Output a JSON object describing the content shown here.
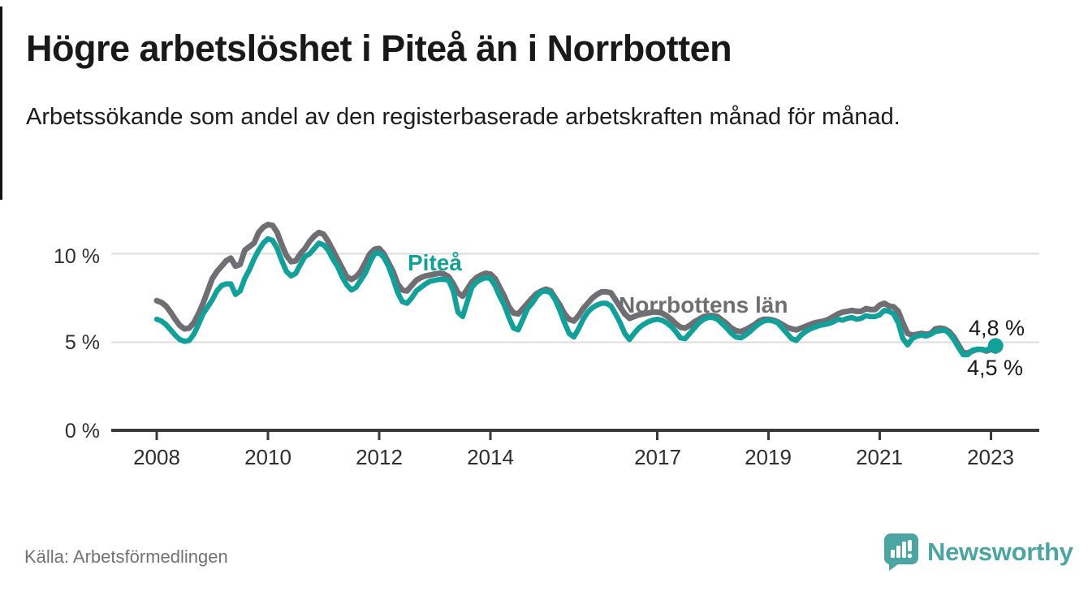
{
  "header": {
    "title": "Högre arbetslöshet i Piteå än i Norrbotten",
    "subtitle": "Arbetssökande som andel av den registerbaserade arbetskraften månad för månad."
  },
  "footer": {
    "source": "Källa: Arbetsförmedlingen",
    "brand": "Newsworthy"
  },
  "colors": {
    "pitea_line": "#12A19A",
    "norrbotten_line": "#6E6E73",
    "gridline": "#DCDCDC",
    "axis": "#3A3A3A",
    "logo_teal": "#4BA5A2",
    "title_text": "#191919",
    "muted_text": "#737373"
  },
  "chart_data": {
    "type": "line",
    "title": "Högre arbetslöshet i Piteå än i Norrbotten",
    "subtitle": "Arbetssökande som andel av den registerbaserade arbetskraften månad för månad.",
    "frequency": "monthly",
    "x_start": "2008-01",
    "x_end": "2023-02",
    "x_tick_labels": [
      "2008",
      "2010",
      "2012",
      "2014",
      "2017",
      "2019",
      "2021",
      "2023"
    ],
    "y_tick_labels": [
      "0 %",
      "5 %",
      "10 %"
    ],
    "y_gridlines": [
      5,
      10
    ],
    "ylim": [
      0,
      13
    ],
    "grid": "horizontal-only",
    "legend_position": "inline-labels",
    "series": [
      {
        "name": "Norrbottens län",
        "color": "#6E6E73",
        "end_label": "4,5 %",
        "end_value": 4.5,
        "end_dot": false,
        "values": [
          7.35,
          7.25,
          7.05,
          6.7,
          6.3,
          5.95,
          5.75,
          5.8,
          6.1,
          6.6,
          7.2,
          7.9,
          8.6,
          9.0,
          9.3,
          9.6,
          9.75,
          9.3,
          9.4,
          10.2,
          10.4,
          10.6,
          11.2,
          11.5,
          11.65,
          11.6,
          11.2,
          10.5,
          9.9,
          9.55,
          9.6,
          10.0,
          10.3,
          10.7,
          11.0,
          11.2,
          11.1,
          10.7,
          10.2,
          9.7,
          9.2,
          8.7,
          8.55,
          8.7,
          9.0,
          9.5,
          10.0,
          10.25,
          10.3,
          10.0,
          9.5,
          9.0,
          8.3,
          7.95,
          7.9,
          8.2,
          8.5,
          8.65,
          8.75,
          8.8,
          8.85,
          8.9,
          8.85,
          8.7,
          8.3,
          7.8,
          7.6,
          8.0,
          8.4,
          8.65,
          8.8,
          8.9,
          8.85,
          8.6,
          8.1,
          7.6,
          7.0,
          6.65,
          6.6,
          6.9,
          7.2,
          7.5,
          7.75,
          7.9,
          8.0,
          7.9,
          7.5,
          7.1,
          6.6,
          6.3,
          6.2,
          6.5,
          6.9,
          7.2,
          7.5,
          7.7,
          7.85,
          7.85,
          7.8,
          7.4,
          7.0,
          6.6,
          6.35,
          6.45,
          6.55,
          6.6,
          6.65,
          6.7,
          6.7,
          6.65,
          6.5,
          6.3,
          6.05,
          5.85,
          5.8,
          5.95,
          6.15,
          6.3,
          6.45,
          6.5,
          6.5,
          6.45,
          6.25,
          6.05,
          5.8,
          5.65,
          5.6,
          5.7,
          5.85,
          6.0,
          6.2,
          6.3,
          6.3,
          6.25,
          6.15,
          6.0,
          5.85,
          5.75,
          5.7,
          5.8,
          5.9,
          6.0,
          6.1,
          6.15,
          6.2,
          6.3,
          6.45,
          6.6,
          6.7,
          6.75,
          6.8,
          6.75,
          6.75,
          6.9,
          6.85,
          6.85,
          7.1,
          7.2,
          7.05,
          7.0,
          6.75,
          6.1,
          5.5,
          5.4,
          5.45,
          5.5,
          5.45,
          5.5,
          5.75,
          5.8,
          5.75,
          5.6,
          5.3,
          4.85,
          4.4,
          4.4,
          4.5,
          4.6,
          4.6,
          4.5,
          4.6,
          4.5
        ]
      },
      {
        "name": "Piteå",
        "color": "#12A19A",
        "end_label": "4,8 %",
        "end_value": 4.8,
        "end_dot": true,
        "values": [
          6.3,
          6.2,
          6.0,
          5.7,
          5.4,
          5.15,
          5.05,
          5.1,
          5.45,
          6.0,
          6.6,
          7.0,
          7.4,
          7.9,
          8.2,
          8.3,
          8.3,
          7.7,
          7.9,
          8.6,
          9.1,
          9.7,
          10.2,
          10.6,
          10.85,
          10.75,
          10.3,
          9.6,
          9.0,
          8.75,
          8.9,
          9.4,
          9.85,
          10.0,
          10.3,
          10.6,
          10.5,
          10.2,
          9.7,
          9.3,
          8.7,
          8.25,
          7.95,
          8.1,
          8.5,
          8.9,
          9.5,
          10.0,
          10.05,
          9.8,
          9.3,
          8.6,
          7.8,
          7.3,
          7.2,
          7.5,
          7.9,
          8.1,
          8.3,
          8.45,
          8.5,
          8.55,
          8.55,
          8.5,
          7.9,
          6.7,
          6.45,
          7.3,
          8.1,
          8.4,
          8.55,
          8.65,
          8.6,
          8.2,
          7.6,
          7.1,
          6.4,
          5.8,
          5.7,
          6.3,
          6.9,
          7.2,
          7.6,
          7.85,
          7.9,
          7.8,
          7.4,
          6.8,
          6.1,
          5.5,
          5.3,
          5.75,
          6.3,
          6.7,
          6.95,
          7.1,
          7.2,
          7.2,
          7.05,
          6.6,
          6.1,
          5.5,
          5.15,
          5.5,
          5.8,
          6.0,
          6.15,
          6.25,
          6.3,
          6.25,
          6.1,
          5.9,
          5.6,
          5.25,
          5.2,
          5.5,
          5.8,
          6.1,
          6.3,
          6.4,
          6.4,
          6.3,
          6.05,
          5.8,
          5.5,
          5.3,
          5.25,
          5.4,
          5.6,
          5.85,
          6.05,
          6.2,
          6.25,
          6.2,
          6.1,
          5.8,
          5.5,
          5.2,
          5.1,
          5.4,
          5.6,
          5.75,
          5.85,
          5.95,
          6.0,
          6.05,
          6.15,
          6.3,
          6.25,
          6.35,
          6.4,
          6.3,
          6.35,
          6.5,
          6.45,
          6.45,
          6.55,
          6.8,
          6.75,
          6.6,
          6.1,
          5.2,
          4.85,
          5.2,
          5.35,
          5.4,
          5.35,
          5.45,
          5.6,
          5.65,
          5.7,
          5.5,
          5.15,
          4.7,
          4.3,
          4.3,
          4.55,
          4.6,
          4.6,
          4.55,
          4.7,
          4.8
        ]
      }
    ]
  }
}
